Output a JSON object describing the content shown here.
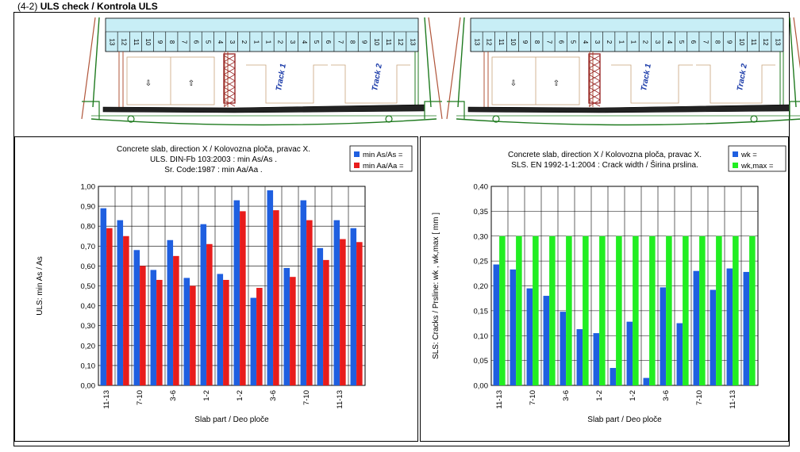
{
  "heading": {
    "number": "(4-2)",
    "title": "ULS check / Kontrola ULS"
  },
  "drawing": {
    "left_numbers": [
      "13",
      "12",
      "11",
      "10",
      "9",
      "8",
      "7",
      "6",
      "5",
      "4",
      "3",
      "2",
      "1"
    ],
    "right_numbers": [
      "1",
      "2",
      "3",
      "4",
      "5",
      "6",
      "7",
      "8",
      "9",
      "10",
      "11",
      "12",
      "13"
    ],
    "track1": "Track 1",
    "track2": "Track 2",
    "colors": {
      "deck": "#c8eef6",
      "steel": "#1f7a1f",
      "ballast": "#222222",
      "outline": "#b0553a"
    }
  },
  "charts": [
    {
      "chart_data": {
        "type": "bar",
        "title_lines": [
          "Concrete slab, direction X / Kolovozna ploča, pravac X.",
          "ULS. DIN-Fb 103:2003 : min As/As .",
          "Sr. Code:1987 : min Aa/Aa ."
        ],
        "xlabel": "Slab part / Deo ploče",
        "ylabel": "ULS:  min As / As",
        "ylim": [
          0,
          1.0
        ],
        "yticks": [
          "0,00",
          "0,10",
          "0,20",
          "0,30",
          "0,40",
          "0,50",
          "0,60",
          "0,70",
          "0,80",
          "0,90",
          "1,00"
        ],
        "xtick_labels": [
          "11-13",
          "",
          "7-10",
          "",
          "3-6",
          "",
          "1-2",
          "",
          "1-2",
          "",
          "3-6",
          "",
          "7-10",
          "",
          "11-13",
          ""
        ],
        "legend_position": "top-right",
        "grid": true,
        "series": [
          {
            "name": "min As/As =",
            "color": "#1f5fe0",
            "values": [
              0.89,
              0.83,
              0.68,
              0.58,
              0.73,
              0.54,
              0.81,
              0.56,
              0.93,
              0.44,
              0.98,
              0.59,
              0.93,
              0.69,
              0.83,
              0.79
            ]
          },
          {
            "name": "min Aa/Aa =",
            "color": "#e81c1c",
            "values": [
              0.79,
              0.75,
              0.6,
              0.53,
              0.65,
              0.5,
              0.71,
              0.53,
              0.875,
              0.49,
              0.88,
              0.545,
              0.83,
              0.63,
              0.735,
              0.72
            ]
          }
        ]
      }
    },
    {
      "chart_data": {
        "type": "bar",
        "title_lines": [
          "Concrete slab, direction X / Kolovozna ploča, pravac X.",
          "SLS. EN 1992-1-1:2004 : Crack width / Širina prslina."
        ],
        "xlabel": "Slab part / Deo ploče",
        "ylabel": "SLS:  Cracks / Prsline:  wk , wk,max  [ mm ]",
        "ylim": [
          0,
          0.4
        ],
        "yticks": [
          "0,00",
          "0,05",
          "0,10",
          "0,15",
          "0,20",
          "0,25",
          "0,30",
          "0,35",
          "0,40"
        ],
        "xtick_labels": [
          "11-13",
          "",
          "7-10",
          "",
          "3-6",
          "",
          "1-2",
          "",
          "1-2",
          "",
          "3-6",
          "",
          "7-10",
          "",
          "11-13",
          ""
        ],
        "legend_position": "top-right",
        "grid": true,
        "series": [
          {
            "name": "wk =",
            "color": "#1f5fe0",
            "values": [
              0.243,
              0.233,
              0.195,
              0.18,
              0.148,
              0.113,
              0.105,
              0.035,
              0.128,
              0.015,
              0.197,
              0.125,
              0.23,
              0.192,
              0.235,
              0.228
            ]
          },
          {
            "name": "wk,max =",
            "color": "#22ee22",
            "values": [
              0.3,
              0.3,
              0.3,
              0.3,
              0.3,
              0.3,
              0.3,
              0.3,
              0.3,
              0.3,
              0.3,
              0.3,
              0.3,
              0.3,
              0.3,
              0.3
            ]
          }
        ]
      }
    }
  ]
}
